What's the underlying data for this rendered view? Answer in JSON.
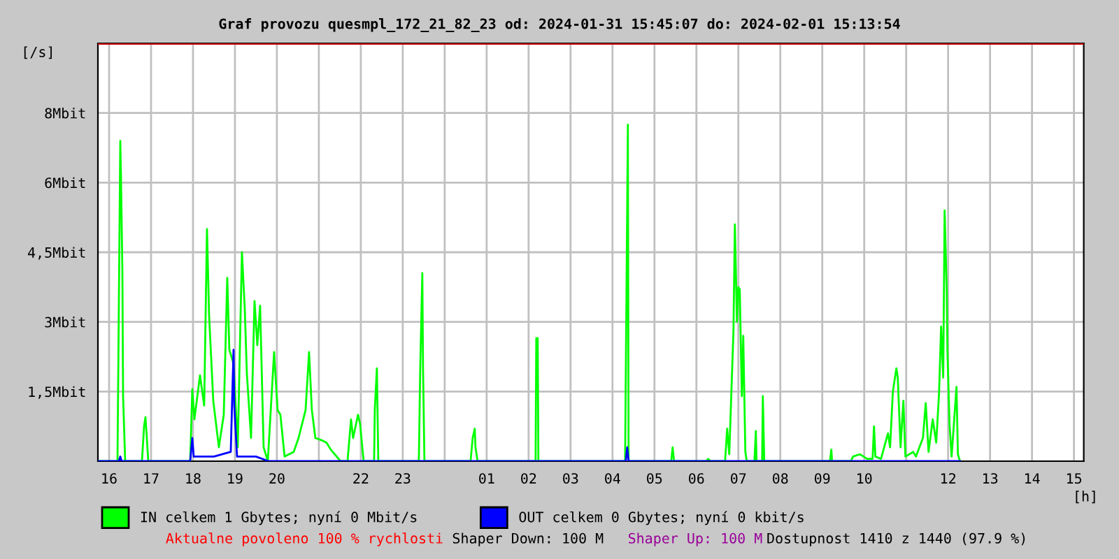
{
  "chart_data": {
    "type": "line",
    "title": "Graf provozu quesmpl_172_21_82_23 od: 2024-01-31 15:45:07 do: 2024-02-01 15:13:54",
    "ylabel": "[/s]",
    "xlabel": "[h]",
    "xlim": [
      "2024-01-31T15:44",
      "2024-02-01T15:14"
    ],
    "ylim": [
      0,
      9
    ],
    "xticks": [
      {
        "value": "2024-01-31T16:00",
        "label": "16"
      },
      {
        "value": "2024-01-31T17:00",
        "label": "17"
      },
      {
        "value": "2024-01-31T18:00",
        "label": "18"
      },
      {
        "value": "2024-01-31T19:00",
        "label": "19"
      },
      {
        "value": "2024-01-31T20:00",
        "label": "20"
      },
      {
        "value": "2024-01-31T21:00",
        "label": null
      },
      {
        "value": "2024-01-31T22:00",
        "label": "22"
      },
      {
        "value": "2024-01-31T23:00",
        "label": "23"
      },
      {
        "value": "2024-02-01T00:00",
        "label": null
      },
      {
        "value": "2024-02-01T01:00",
        "label": "01"
      },
      {
        "value": "2024-02-01T02:00",
        "label": "02"
      },
      {
        "value": "2024-02-01T03:00",
        "label": "03"
      },
      {
        "value": "2024-02-01T04:00",
        "label": "04"
      },
      {
        "value": "2024-02-01T05:00",
        "label": "05"
      },
      {
        "value": "2024-02-01T06:00",
        "label": "06"
      },
      {
        "value": "2024-02-01T07:00",
        "label": "07"
      },
      {
        "value": "2024-02-01T08:00",
        "label": "08"
      },
      {
        "value": "2024-02-01T09:00",
        "label": "09"
      },
      {
        "value": "2024-02-01T10:00",
        "label": "10"
      },
      {
        "value": "2024-02-01T11:00",
        "label": null
      },
      {
        "value": "2024-02-01T12:00",
        "label": "12"
      },
      {
        "value": "2024-02-01T13:00",
        "label": "13"
      },
      {
        "value": "2024-02-01T14:00",
        "label": "14"
      },
      {
        "value": "2024-02-01T15:00",
        "label": "15"
      }
    ],
    "yticks": [
      {
        "value": 1.5,
        "label": "1,5Mbit"
      },
      {
        "value": 3,
        "label": "3Mbit"
      },
      {
        "value": 4.5,
        "label": "4,5Mbit"
      },
      {
        "value": 6,
        "label": "6Mbit"
      },
      {
        "value": 7.5,
        "label": "8Mbit"
      }
    ],
    "grid": true,
    "legend": "bottom",
    "ref_lines": [
      {
        "axis": "y",
        "value": 9,
        "label": null,
        "color": "#cc0000"
      }
    ],
    "series": [
      {
        "name": "IN celkem 1 Gbytes; nyní 0 Mbit/s",
        "color": "#00ff00",
        "x": [
          "2024-01-31T15:45",
          "2024-01-31T16:12",
          "2024-01-31T16:14",
          "2024-01-31T16:16",
          "2024-01-31T16:17",
          "2024-01-31T16:19",
          "2024-01-31T16:20",
          "2024-01-31T16:23",
          "2024-01-31T16:47",
          "2024-01-31T16:50",
          "2024-01-31T16:52",
          "2024-01-31T16:54",
          "2024-01-31T16:56",
          "2024-01-31T17:56",
          "2024-01-31T17:59",
          "2024-01-31T18:02",
          "2024-01-31T18:10",
          "2024-01-31T18:16",
          "2024-01-31T18:20",
          "2024-01-31T18:23",
          "2024-01-31T18:29",
          "2024-01-31T18:37",
          "2024-01-31T18:44",
          "2024-01-31T18:49",
          "2024-01-31T18:52",
          "2024-01-31T18:58",
          "2024-01-31T19:04",
          "2024-01-31T19:10",
          "2024-01-31T19:14",
          "2024-01-31T19:17",
          "2024-01-31T19:23",
          "2024-01-31T19:28",
          "2024-01-31T19:32",
          "2024-01-31T19:36",
          "2024-01-31T19:41",
          "2024-01-31T19:47",
          "2024-01-31T19:56",
          "2024-01-31T20:01",
          "2024-01-31T20:05",
          "2024-01-31T20:11",
          "2024-01-31T20:24",
          "2024-01-31T20:31",
          "2024-01-31T20:41",
          "2024-01-31T20:46",
          "2024-01-31T20:50",
          "2024-01-31T20:55",
          "2024-01-31T21:04",
          "2024-01-31T21:11",
          "2024-01-31T21:17",
          "2024-01-31T21:31",
          "2024-01-31T21:41",
          "2024-01-31T21:46",
          "2024-01-31T21:49",
          "2024-01-31T21:56",
          "2024-01-31T21:59",
          "2024-01-31T22:04",
          "2024-01-31T22:19",
          "2024-01-31T22:20",
          "2024-01-31T22:23",
          "2024-01-31T22:25",
          "2024-01-31T23:23",
          "2024-01-31T23:25",
          "2024-01-31T23:28",
          "2024-01-31T23:29",
          "2024-01-31T23:31",
          "2024-02-01T00:37",
          "2024-02-01T00:40",
          "2024-02-01T00:43",
          "2024-02-01T00:44",
          "2024-02-01T00:47",
          "2024-02-01T02:10",
          "2024-02-01T02:11",
          "2024-02-01T02:13",
          "2024-02-01T02:14",
          "2024-02-01T04:18",
          "2024-02-01T04:20",
          "2024-02-01T04:22",
          "2024-02-01T04:23",
          "2024-02-01T05:24",
          "2024-02-01T05:26",
          "2024-02-01T05:28",
          "2024-02-01T06:14",
          "2024-02-01T06:17",
          "2024-02-01T06:20",
          "2024-02-01T06:41",
          "2024-02-01T06:44",
          "2024-02-01T06:47",
          "2024-02-01T06:53",
          "2024-02-01T06:55",
          "2024-02-01T06:58",
          "2024-02-01T07:00",
          "2024-02-01T07:02",
          "2024-02-01T07:05",
          "2024-02-01T07:07",
          "2024-02-01T07:10",
          "2024-02-01T07:12",
          "2024-02-01T07:23",
          "2024-02-01T07:25",
          "2024-02-01T07:26",
          "2024-02-01T07:34",
          "2024-02-01T07:35",
          "2024-02-01T07:37",
          "2024-02-01T09:11",
          "2024-02-01T09:13",
          "2024-02-01T09:14",
          "2024-02-01T09:41",
          "2024-02-01T09:44",
          "2024-02-01T09:54",
          "2024-02-01T10:04",
          "2024-02-01T10:12",
          "2024-02-01T10:14",
          "2024-02-01T10:16",
          "2024-02-01T10:24",
          "2024-02-01T10:34",
          "2024-02-01T10:37",
          "2024-02-01T10:41",
          "2024-02-01T10:46",
          "2024-02-01T10:48",
          "2024-02-01T10:52",
          "2024-02-01T10:56",
          "2024-02-01T10:59",
          "2024-02-01T11:10",
          "2024-02-01T11:14",
          "2024-02-01T11:24",
          "2024-02-01T11:28",
          "2024-02-01T11:32",
          "2024-02-01T11:38",
          "2024-02-01T11:43",
          "2024-02-01T11:47",
          "2024-02-01T11:50",
          "2024-02-01T11:53",
          "2024-02-01T11:55",
          "2024-02-01T11:58",
          "2024-02-01T11:59",
          "2024-02-01T12:02",
          "2024-02-01T12:05",
          "2024-02-01T12:12",
          "2024-02-01T12:14",
          "2024-02-01T12:17"
        ],
        "values": [
          0,
          0,
          3.45,
          6.9,
          6.1,
          4.1,
          1.4,
          0,
          0,
          0.75,
          0.95,
          0.5,
          0,
          0,
          1.55,
          0.9,
          1.85,
          1.2,
          5.0,
          3.15,
          1.3,
          0.3,
          1.0,
          3.95,
          2.4,
          2.1,
          0.3,
          4.5,
          3.3,
          1.9,
          0.5,
          3.45,
          2.5,
          3.35,
          0.3,
          0,
          2.35,
          1.1,
          1.0,
          0.1,
          0.2,
          0.5,
          1.1,
          2.35,
          1.1,
          0.5,
          0.45,
          0.4,
          0.25,
          0,
          0,
          0.9,
          0.5,
          1.0,
          0.8,
          0,
          0,
          1.1,
          2.0,
          0,
          0,
          2.0,
          4.05,
          2.0,
          0,
          0,
          0.5,
          0.7,
          0.3,
          0,
          0,
          2.65,
          2.65,
          0,
          0,
          3.6,
          7.25,
          0,
          0,
          0.3,
          0,
          0,
          0.05,
          0,
          0,
          0.7,
          0.15,
          2.8,
          5.1,
          3.0,
          3.75,
          3.7,
          1.4,
          2.7,
          0.2,
          0,
          0,
          0.65,
          0,
          0,
          1.4,
          0,
          0,
          0.25,
          0,
          0,
          0.1,
          0.15,
          0.05,
          0.05,
          0.75,
          0.1,
          0.05,
          0.6,
          0.3,
          1.5,
          2.0,
          1.8,
          0.3,
          1.3,
          0.1,
          0.2,
          0.1,
          0.5,
          1.25,
          0.2,
          0.9,
          0.4,
          1.45,
          2.9,
          1.8,
          5.4,
          3.7,
          2.4,
          0.8,
          0.1,
          1.6,
          0.15,
          0
        ]
      },
      {
        "name": "OUT celkem 0 Gbytes; nyní 0 kbit/s",
        "color": "#0000ff",
        "x": [
          "2024-01-31T15:45",
          "2024-01-31T16:14",
          "2024-01-31T16:16",
          "2024-01-31T16:18",
          "2024-01-31T17:56",
          "2024-01-31T17:59",
          "2024-01-31T18:01",
          "2024-01-31T18:30",
          "2024-01-31T18:54",
          "2024-01-31T18:58",
          "2024-01-31T18:59",
          "2024-01-31T19:03",
          "2024-01-31T19:30",
          "2024-01-31T19:48",
          "2024-02-01T04:19",
          "2024-02-01T04:21",
          "2024-02-01T04:23",
          "2024-02-01T12:17"
        ],
        "values": [
          0,
          0,
          0.1,
          0,
          0,
          0.5,
          0.1,
          0.1,
          0.2,
          2.4,
          1.2,
          0.1,
          0.1,
          0,
          0,
          0.3,
          0,
          0
        ]
      }
    ],
    "annotations": [
      "Aktualne povoleno 100 % rychlosti",
      "Shaper Down: 100 M",
      "Shaper Up: 100 M",
      "Dostupnost 1410 z 1440 (97.9 %)"
    ]
  }
}
